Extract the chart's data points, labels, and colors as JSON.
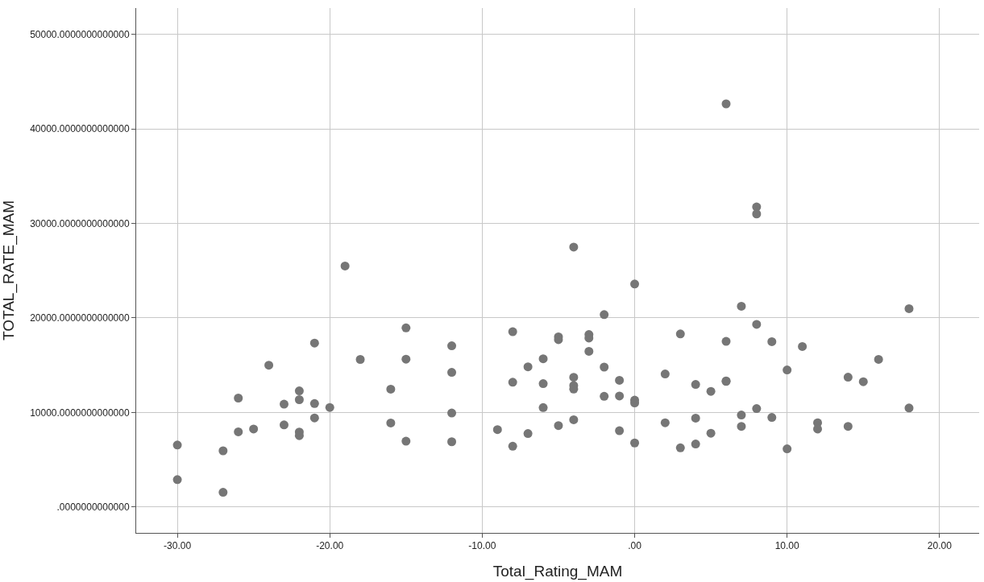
{
  "chart_data": {
    "type": "scatter",
    "xlabel": "Total_Rating_MAM",
    "ylabel": "TOTAL_RATE_MAM",
    "marker": "circle",
    "grid": true,
    "legend": false,
    "xlim": [
      -32.7,
      22.6
    ],
    "ylim": [
      -2750,
      52800
    ],
    "xticks": [
      {
        "value": -30,
        "label": "-30.00"
      },
      {
        "value": -20,
        "label": "-20.00"
      },
      {
        "value": -10,
        "label": "-10.00"
      },
      {
        "value": 0,
        "label": ".00"
      },
      {
        "value": 10,
        "label": "10.00"
      },
      {
        "value": 20,
        "label": "20.00"
      }
    ],
    "yticks": [
      {
        "value": 0,
        "label": ".0000000000000"
      },
      {
        "value": 10000,
        "label": "10000.0000000000000"
      },
      {
        "value": 20000,
        "label": "20000.0000000000000"
      },
      {
        "value": 30000,
        "label": "30000.0000000000000"
      },
      {
        "value": 40000,
        "label": "40000.0000000000000"
      },
      {
        "value": 50000,
        "label": "50000.0000000000000"
      }
    ],
    "series": [
      {
        "color": "#767676",
        "x": [
          -30,
          -30,
          -27,
          -27,
          -26,
          -26,
          -25,
          -24,
          -23,
          -23,
          -22,
          -22,
          -22,
          -22,
          -21,
          -21,
          -21,
          -20,
          -19,
          -18,
          -16,
          -16,
          -15,
          -15,
          -15,
          -12,
          -12,
          -12,
          -12,
          -9,
          -8,
          -8,
          -8,
          -7,
          -7,
          -6,
          -6,
          -6,
          -5,
          -5,
          -5,
          -4,
          -4,
          -4,
          -4,
          -4,
          -3,
          -3,
          -3,
          -2,
          -2,
          -2,
          -1,
          -1,
          -1,
          0,
          0,
          0,
          0,
          2,
          2,
          3,
          3,
          4,
          4,
          4,
          5,
          5,
          6,
          6,
          6,
          6,
          7,
          7,
          7,
          8,
          8,
          8,
          8,
          9,
          9,
          10,
          10,
          11,
          12,
          12,
          14,
          14,
          15,
          16,
          18,
          18
        ],
        "values": [
          6550,
          2890,
          5940,
          1550,
          11520,
          7950,
          8250,
          15000,
          10880,
          8680,
          12280,
          11350,
          7920,
          7540,
          17340,
          10940,
          9420,
          10530,
          25500,
          15610,
          12460,
          8890,
          18950,
          15640,
          6960,
          17050,
          14240,
          9940,
          6900,
          8180,
          18540,
          13200,
          6420,
          14830,
          7770,
          15680,
          13050,
          10510,
          18000,
          17700,
          8610,
          27500,
          13720,
          12850,
          12470,
          9230,
          18250,
          17870,
          16470,
          20350,
          14800,
          11710,
          13400,
          11740,
          8060,
          23590,
          11300,
          11010,
          6770,
          14070,
          8910,
          18310,
          6250,
          12960,
          9400,
          6660,
          12230,
          7800,
          42660,
          17520,
          13340,
          13280,
          21240,
          9730,
          8520,
          31750,
          31010,
          19320,
          10410,
          17490,
          9470,
          14500,
          6150,
          16980,
          8900,
          8250,
          13730,
          8520,
          13250,
          15620,
          20980,
          10470
        ]
      }
    ]
  }
}
